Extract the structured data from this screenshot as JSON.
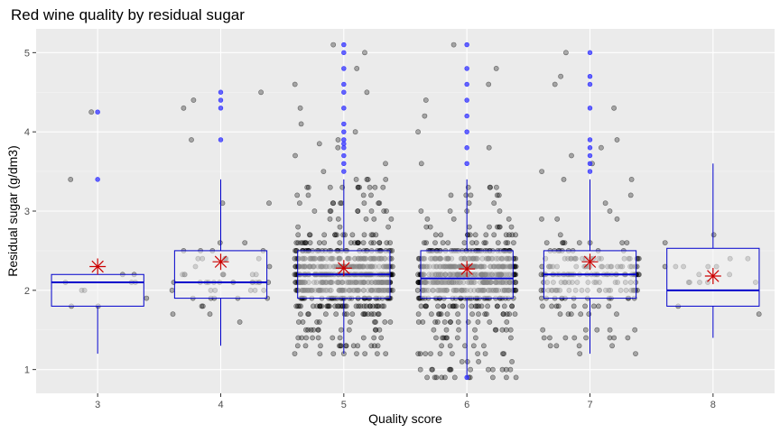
{
  "chart_data": {
    "type": "box",
    "title": "Red wine quality by residual sugar",
    "xlabel": "Quality score",
    "ylabel": "Residual sugar (g/dm3)",
    "categories": [
      "3",
      "4",
      "5",
      "6",
      "7",
      "8"
    ],
    "ylim": [
      0.7,
      5.3
    ],
    "yticks": [
      1,
      2,
      3,
      4,
      5
    ],
    "grid": true,
    "colors": {
      "panel": "#ebebeb",
      "grid_major": "#ffffff",
      "grid_minor": "#f5f5f5",
      "box_stroke": "#0000cc",
      "box_fill": "#f2f2f2",
      "median": "#0000cc",
      "outlier": "#3333ff",
      "mean": "#cc0000",
      "jitter": "#000000"
    },
    "boxes": [
      {
        "q1": 1.8,
        "median": 2.1,
        "q3": 2.2,
        "whisker_low": 1.2,
        "whisker_high": 2.2,
        "mean": 2.3,
        "outliers": [
          3.4,
          4.25
        ]
      },
      {
        "q1": 1.9,
        "median": 2.1,
        "q3": 2.5,
        "whisker_low": 1.3,
        "whisker_high": 3.4,
        "mean": 2.36,
        "outliers": [
          3.9,
          4.3,
          4.4,
          4.5
        ]
      },
      {
        "q1": 1.9,
        "median": 2.2,
        "q3": 2.5,
        "whisker_low": 1.2,
        "whisker_high": 3.4,
        "mean": 2.28,
        "outliers": [
          3.5,
          3.6,
          3.7,
          3.8,
          3.85,
          3.9,
          4.0,
          4.1,
          4.3,
          4.5,
          4.6,
          4.8,
          5.0,
          5.1
        ]
      },
      {
        "q1": 1.9,
        "median": 2.15,
        "q3": 2.5,
        "whisker_low": 0.9,
        "whisker_high": 3.4,
        "mean": 2.27,
        "outliers": [
          3.6,
          3.8,
          4.0,
          4.2,
          4.4,
          4.6,
          4.8,
          5.1,
          0.9
        ]
      },
      {
        "q1": 1.9,
        "median": 2.2,
        "q3": 2.5,
        "whisker_low": 1.2,
        "whisker_high": 3.4,
        "mean": 2.36,
        "outliers": [
          3.5,
          3.6,
          3.7,
          3.8,
          3.9,
          4.3,
          4.6,
          4.7,
          5.0
        ]
      },
      {
        "q1": 1.8,
        "median": 2.0,
        "q3": 2.53,
        "whisker_low": 1.4,
        "whisker_high": 3.6,
        "mean": 2.18,
        "outliers": []
      }
    ],
    "group_sizes": [
      10,
      53,
      681,
      638,
      199,
      18
    ]
  }
}
